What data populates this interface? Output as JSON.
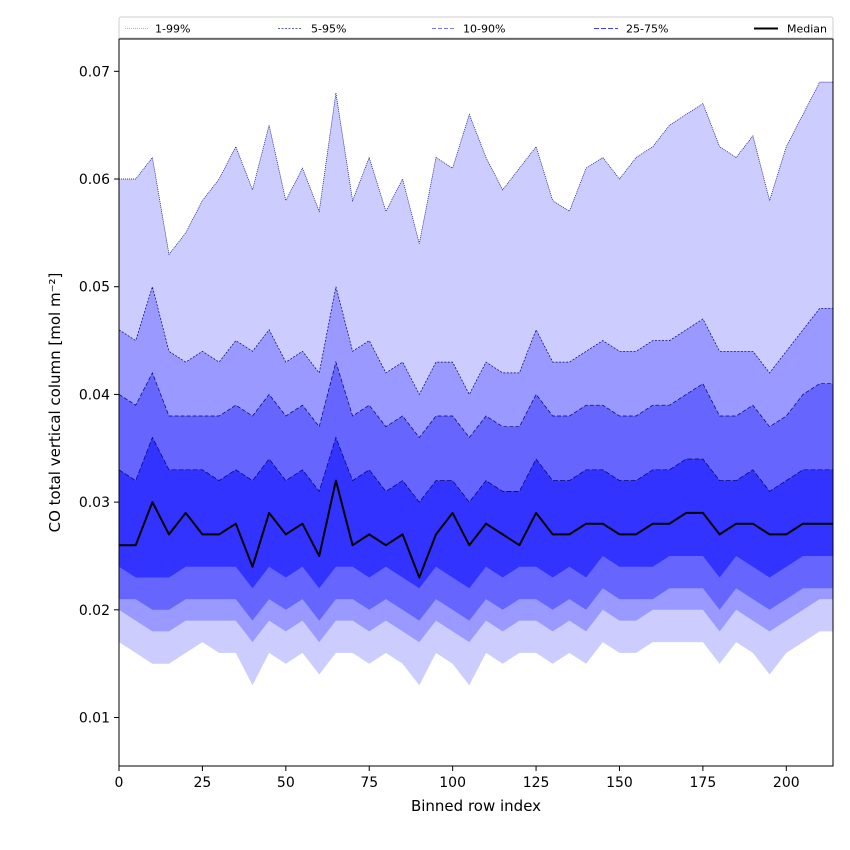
{
  "chart_data": {
    "type": "area",
    "xlabel": "Binned row index",
    "ylabel": "CO total vertical column [mol m⁻²]",
    "xlim": [
      0,
      214
    ],
    "ylim": [
      0.0055,
      0.073
    ],
    "xticks": [
      0,
      25,
      50,
      75,
      100,
      125,
      150,
      175,
      200
    ],
    "yticks": [
      0.01,
      0.02,
      0.03,
      0.04,
      0.05,
      0.06,
      0.07
    ],
    "ytick_labels": [
      "0.01",
      "0.02",
      "0.03",
      "0.04",
      "0.05",
      "0.06",
      "0.07"
    ],
    "grid": false,
    "legend": {
      "placement": "top",
      "entries": [
        "1-99%",
        "5-95%",
        "10-90%",
        "25-75%",
        "Median"
      ]
    },
    "colors": {
      "band_1_99": "#ccccff",
      "band_5_95": "#9999ff",
      "band_10_90": "#6666ff",
      "band_25_75": "#3333ff",
      "edge": "#00007a",
      "median": "#000000"
    },
    "x": [
      0,
      5,
      10,
      15,
      20,
      25,
      30,
      35,
      40,
      45,
      50,
      55,
      60,
      65,
      70,
      75,
      80,
      85,
      90,
      95,
      100,
      105,
      110,
      115,
      120,
      125,
      130,
      135,
      140,
      145,
      150,
      155,
      160,
      165,
      170,
      175,
      180,
      185,
      190,
      195,
      200,
      205,
      210,
      214
    ],
    "series": [
      {
        "name": "1-99%",
        "upper": [
          0.06,
          0.06,
          0.062,
          0.053,
          0.055,
          0.058,
          0.06,
          0.063,
          0.059,
          0.065,
          0.058,
          0.061,
          0.057,
          0.068,
          0.058,
          0.062,
          0.057,
          0.06,
          0.054,
          0.062,
          0.061,
          0.066,
          0.062,
          0.059,
          0.061,
          0.063,
          0.058,
          0.057,
          0.061,
          0.062,
          0.06,
          0.062,
          0.063,
          0.065,
          0.066,
          0.067,
          0.063,
          0.062,
          0.064,
          0.058,
          0.063,
          0.066,
          0.069,
          0.069
        ],
        "lower": [
          0.017,
          0.016,
          0.015,
          0.015,
          0.016,
          0.017,
          0.016,
          0.016,
          0.013,
          0.016,
          0.015,
          0.016,
          0.014,
          0.016,
          0.016,
          0.015,
          0.016,
          0.015,
          0.013,
          0.016,
          0.015,
          0.013,
          0.016,
          0.015,
          0.016,
          0.016,
          0.015,
          0.016,
          0.015,
          0.017,
          0.016,
          0.016,
          0.017,
          0.017,
          0.017,
          0.017,
          0.015,
          0.017,
          0.016,
          0.014,
          0.016,
          0.017,
          0.018,
          0.018
        ]
      },
      {
        "name": "5-95%",
        "upper": [
          0.046,
          0.045,
          0.05,
          0.044,
          0.043,
          0.044,
          0.043,
          0.045,
          0.044,
          0.046,
          0.043,
          0.044,
          0.042,
          0.05,
          0.044,
          0.045,
          0.042,
          0.043,
          0.04,
          0.043,
          0.043,
          0.04,
          0.043,
          0.042,
          0.042,
          0.046,
          0.043,
          0.043,
          0.044,
          0.045,
          0.044,
          0.044,
          0.045,
          0.045,
          0.046,
          0.047,
          0.044,
          0.044,
          0.044,
          0.042,
          0.044,
          0.046,
          0.048,
          0.048
        ],
        "lower": [
          0.02,
          0.019,
          0.018,
          0.018,
          0.019,
          0.019,
          0.019,
          0.019,
          0.017,
          0.019,
          0.018,
          0.019,
          0.017,
          0.019,
          0.019,
          0.018,
          0.019,
          0.018,
          0.017,
          0.019,
          0.018,
          0.017,
          0.019,
          0.018,
          0.019,
          0.019,
          0.018,
          0.019,
          0.018,
          0.02,
          0.019,
          0.019,
          0.02,
          0.02,
          0.02,
          0.02,
          0.018,
          0.02,
          0.019,
          0.018,
          0.019,
          0.02,
          0.021,
          0.021
        ]
      },
      {
        "name": "10-90%",
        "upper": [
          0.04,
          0.039,
          0.042,
          0.038,
          0.038,
          0.038,
          0.038,
          0.039,
          0.038,
          0.04,
          0.038,
          0.039,
          0.037,
          0.043,
          0.038,
          0.039,
          0.037,
          0.038,
          0.036,
          0.038,
          0.038,
          0.036,
          0.038,
          0.037,
          0.037,
          0.04,
          0.038,
          0.038,
          0.039,
          0.039,
          0.038,
          0.038,
          0.039,
          0.039,
          0.04,
          0.041,
          0.038,
          0.038,
          0.039,
          0.037,
          0.038,
          0.04,
          0.041,
          0.041
        ],
        "lower": [
          0.021,
          0.021,
          0.02,
          0.02,
          0.021,
          0.021,
          0.021,
          0.021,
          0.019,
          0.021,
          0.02,
          0.021,
          0.019,
          0.021,
          0.021,
          0.02,
          0.021,
          0.02,
          0.019,
          0.021,
          0.02,
          0.019,
          0.021,
          0.02,
          0.021,
          0.021,
          0.02,
          0.021,
          0.02,
          0.022,
          0.021,
          0.021,
          0.021,
          0.022,
          0.022,
          0.022,
          0.02,
          0.022,
          0.021,
          0.02,
          0.021,
          0.022,
          0.022,
          0.022
        ]
      },
      {
        "name": "25-75%",
        "upper": [
          0.033,
          0.032,
          0.036,
          0.033,
          0.033,
          0.033,
          0.032,
          0.033,
          0.032,
          0.034,
          0.032,
          0.033,
          0.031,
          0.036,
          0.032,
          0.033,
          0.031,
          0.032,
          0.03,
          0.032,
          0.032,
          0.03,
          0.032,
          0.031,
          0.031,
          0.034,
          0.032,
          0.032,
          0.033,
          0.033,
          0.032,
          0.032,
          0.033,
          0.033,
          0.034,
          0.034,
          0.032,
          0.032,
          0.033,
          0.031,
          0.032,
          0.033,
          0.033,
          0.033
        ],
        "lower": [
          0.024,
          0.023,
          0.023,
          0.023,
          0.024,
          0.024,
          0.024,
          0.024,
          0.022,
          0.024,
          0.023,
          0.024,
          0.022,
          0.024,
          0.024,
          0.023,
          0.024,
          0.023,
          0.022,
          0.024,
          0.023,
          0.022,
          0.024,
          0.023,
          0.024,
          0.024,
          0.023,
          0.024,
          0.023,
          0.025,
          0.024,
          0.024,
          0.024,
          0.025,
          0.025,
          0.025,
          0.023,
          0.025,
          0.024,
          0.023,
          0.024,
          0.025,
          0.025,
          0.025
        ]
      },
      {
        "name": "Median",
        "values": [
          0.026,
          0.026,
          0.03,
          0.027,
          0.029,
          0.027,
          0.027,
          0.028,
          0.024,
          0.029,
          0.027,
          0.028,
          0.025,
          0.032,
          0.026,
          0.027,
          0.026,
          0.027,
          0.023,
          0.027,
          0.029,
          0.026,
          0.028,
          0.027,
          0.026,
          0.029,
          0.027,
          0.027,
          0.028,
          0.028,
          0.027,
          0.027,
          0.028,
          0.028,
          0.029,
          0.029,
          0.027,
          0.028,
          0.028,
          0.027,
          0.027,
          0.028,
          0.028,
          0.028
        ]
      }
    ]
  }
}
